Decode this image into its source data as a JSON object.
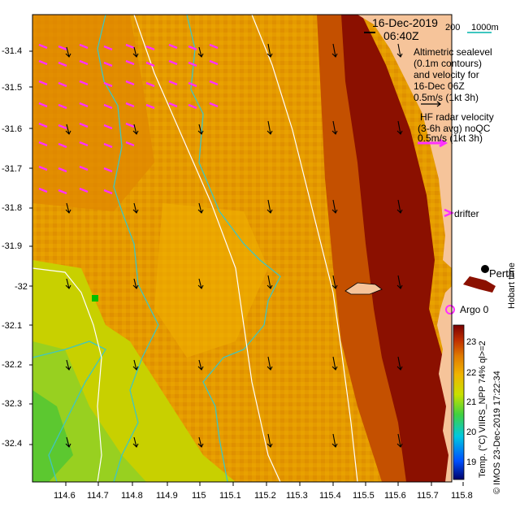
{
  "header": {
    "date": "16-Dec-2019",
    "time": "06:40Z",
    "scale_200": "200",
    "scale_1000": "1000m"
  },
  "legend": {
    "altimetric_lines": [
      "Altimetric sealevel",
      "(0.1m contours)",
      "and velocity for",
      "16-Dec 06Z",
      "0.5m/s (1kt 3h)"
    ],
    "hf_lines": [
      "HF radar velocity",
      "(3-6h avg) noQC",
      "0.5m/s (1kt 3h)"
    ],
    "drifter": "drifter",
    "argo": "Argo 0",
    "place": "Perth",
    "hobart": "Hobart time"
  },
  "credit": "© IMOS 23-Dec-2019 17:22:34",
  "colorbar": {
    "title": "Temp. (°C) VIIRS_NPP 74% ql>=2",
    "ticks": [
      "23",
      "22",
      "21",
      "20",
      "19"
    ]
  },
  "axes": {
    "y_ticks": [
      "-31.4",
      "-31.5",
      "-31.6",
      "-31.7",
      "-31.8",
      "-31.9",
      "-32",
      "-32.1",
      "-32.2",
      "-32.3",
      "-32.4"
    ],
    "x_ticks": [
      "114.6",
      "114.7",
      "114.8",
      "114.9",
      "115",
      "115.1",
      "115.2",
      "115.3",
      "115.4",
      "115.5",
      "115.6",
      "115.7",
      "115.8"
    ]
  },
  "colors": {
    "land": "#f6c49a",
    "warm": "#8b1000",
    "mid": "#e07a00",
    "cool": "#f0b400",
    "cold": "#88c832",
    "hf_vector": "#ff30ff",
    "contour": "#3fc6c0",
    "argo": "#ff30ff"
  }
}
